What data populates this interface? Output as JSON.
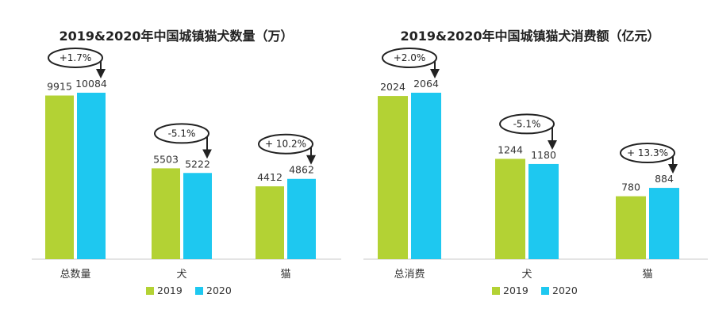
{
  "chart_data": [
    {
      "type": "bar",
      "title": "2019&2020年中国城镇猫犬数量（万）",
      "categories": [
        "总数量",
        "犬",
        "猫"
      ],
      "series": [
        {
          "name": "2019",
          "values": [
            9915,
            5503,
            4412
          ]
        },
        {
          "name": "2020",
          "values": [
            10084,
            5222,
            4862
          ]
        }
      ],
      "annotations": [
        "+1.7%",
        "-5.1%",
        "+ 10.2%"
      ],
      "ylim": [
        0,
        10084
      ],
      "grid": false,
      "legend": "bottom"
    },
    {
      "type": "bar",
      "title": "2019&2020年中国城镇猫犬消费额（亿元）",
      "categories": [
        "总消费",
        "犬",
        "猫"
      ],
      "series": [
        {
          "name": "2019",
          "values": [
            2024,
            1244,
            780
          ]
        },
        {
          "name": "2020",
          "values": [
            2064,
            1180,
            884
          ]
        }
      ],
      "annotations": [
        "+2.0%",
        "-5.1%",
        "+ 13.3%"
      ],
      "ylim": [
        0,
        2064
      ],
      "grid": false,
      "legend": "bottom"
    }
  ],
  "colors": {
    "2019": "#b3d234",
    "2020": "#1ec8f0",
    "axis": "#c8c8c8"
  }
}
